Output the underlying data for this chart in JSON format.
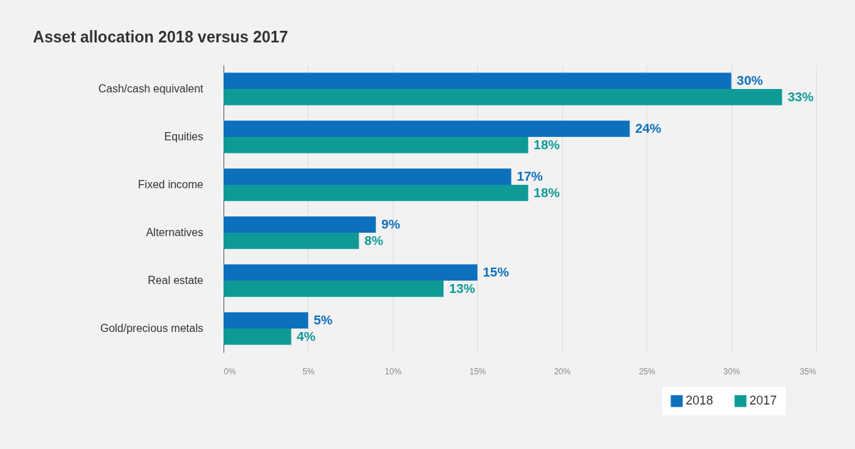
{
  "chart_data": {
    "type": "bar",
    "orientation": "horizontal",
    "title": "Asset allocation 2018 versus 2017",
    "categories": [
      "Cash/cash equivalent",
      "Equities",
      "Fixed income",
      "Alternatives",
      "Real estate",
      "Gold/precious metals"
    ],
    "series": [
      {
        "name": "2018",
        "color": "#0d70bd",
        "values": [
          30,
          24,
          17,
          9,
          15,
          5
        ]
      },
      {
        "name": "2017",
        "color": "#0f9a97",
        "values": [
          33,
          18,
          18,
          8,
          13,
          4
        ]
      }
    ],
    "xlim": [
      0,
      35
    ],
    "xticks": [
      {
        "value": 0,
        "label": "0%"
      },
      {
        "value": 5,
        "label": "5%"
      },
      {
        "value": 10,
        "label": "10%"
      },
      {
        "value": 15,
        "label": "15%"
      },
      {
        "value": 20,
        "label": "20%"
      },
      {
        "value": 25,
        "label": "25%"
      },
      {
        "value": 30,
        "label": "30%"
      },
      {
        "value": 35,
        "label": "35%"
      }
    ],
    "value_labels": [
      [
        "30%",
        "24%",
        "17%",
        "9%",
        "15%",
        "5%"
      ],
      [
        "33%",
        "18%",
        "18%",
        "8%",
        "13%",
        "4%"
      ]
    ],
    "grid": "x",
    "legend": "bottom right"
  }
}
